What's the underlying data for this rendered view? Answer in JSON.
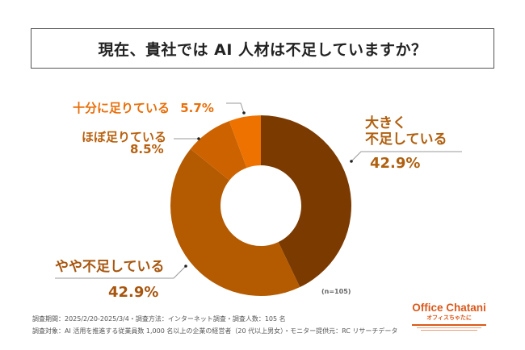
{
  "title": "現在、貴社では AI 人材は不足していますか？",
  "chart_data": {
    "type": "pie",
    "donut": true,
    "title": "現在、貴社では AI 人材は不足していますか？",
    "categories": [
      "大きく不足している",
      "やや不足している",
      "ほぼ足りている",
      "十分に足りている"
    ],
    "values": [
      42.9,
      42.9,
      8.5,
      5.7
    ],
    "colors": [
      "#7b3a00",
      "#b45a00",
      "#cc6300",
      "#ed7200"
    ],
    "label_colors": [
      "#b0600f",
      "#a8560e",
      "#b8600e",
      "#e96f0a"
    ],
    "labels": {
      "large_line1": "大きく",
      "large_line2": "不足している",
      "large_value": "42.9%",
      "somewhat": "やや不足している",
      "somewhat_value": "42.9%",
      "mostly": "ほぼ足りている",
      "mostly_value": "8.5%",
      "enough": "十分に足りている",
      "enough_value": "5.7%"
    },
    "n_label": "(n=105)"
  },
  "footer": {
    "line1": "調査期間：2025/2/20-2025/3/4・調査方法：インターネット調査・調査人数：105 名",
    "line2": "調査対象：AI 活用を推進する従業員数 1,000 名以上の企業の経営者（20 代以上男女）・モニター提供元：RC リサーチデータ"
  },
  "logo": {
    "name": "Office Chatani",
    "sub": "オフィスちゃたに"
  }
}
